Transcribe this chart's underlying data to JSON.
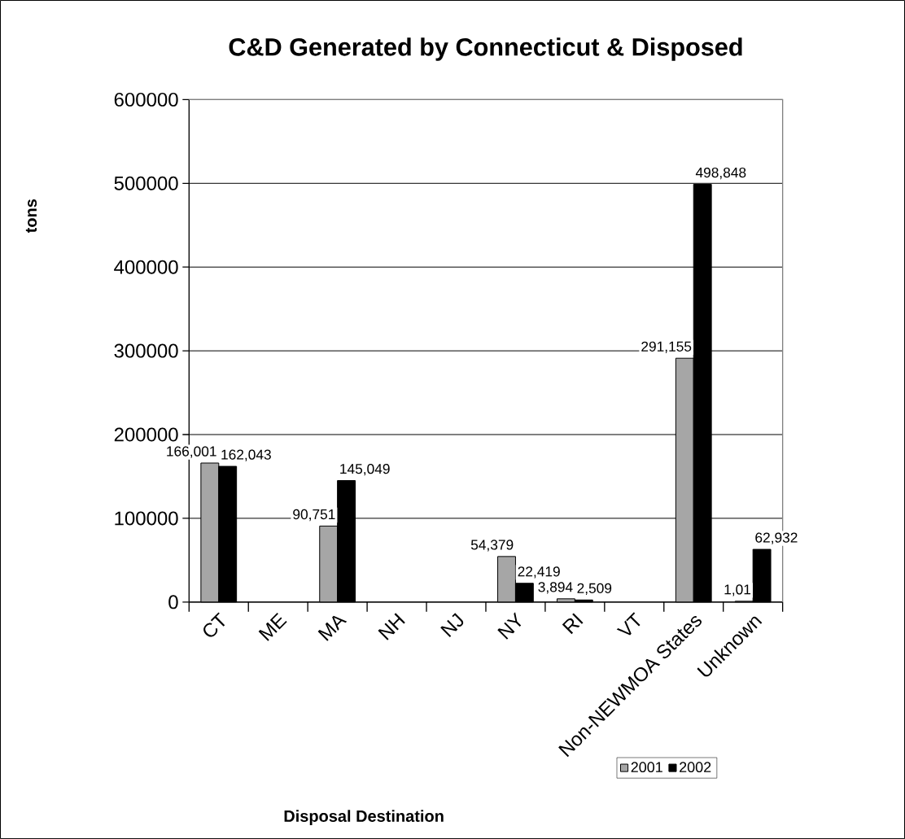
{
  "chart_data": {
    "type": "bar",
    "title": "C&D Generated by Connecticut & Disposed",
    "xlabel": "Disposal Destination",
    "ylabel": "tons",
    "categories": [
      "CT",
      "ME",
      "MA",
      "NH",
      "NJ",
      "NY",
      "RI",
      "VT",
      "Non-NEWMOA States",
      "Unknown"
    ],
    "series": [
      {
        "name": "2001",
        "color": "#a6a6a6",
        "values": [
          166001,
          null,
          90751,
          null,
          null,
          54379,
          3894,
          null,
          291155,
          1000
        ],
        "value_labels": [
          "166,001",
          null,
          "90,751",
          null,
          null,
          "54,379",
          "3,894",
          null,
          "291,155",
          null
        ]
      },
      {
        "name": "2002",
        "color": "#000000",
        "values": [
          162043,
          null,
          145049,
          null,
          null,
          22419,
          2509,
          null,
          498848,
          62932
        ],
        "value_labels": [
          "162,043",
          null,
          "145,049",
          null,
          null,
          "22,419",
          "2,509",
          null,
          "498,848",
          "62,932"
        ]
      }
    ],
    "annotations": [
      "1,01"
    ],
    "ylim": [
      0,
      600000
    ],
    "yticks": [
      0,
      100000,
      200000,
      300000,
      400000,
      500000,
      600000
    ],
    "grid": "y",
    "legend": "bottom right"
  }
}
